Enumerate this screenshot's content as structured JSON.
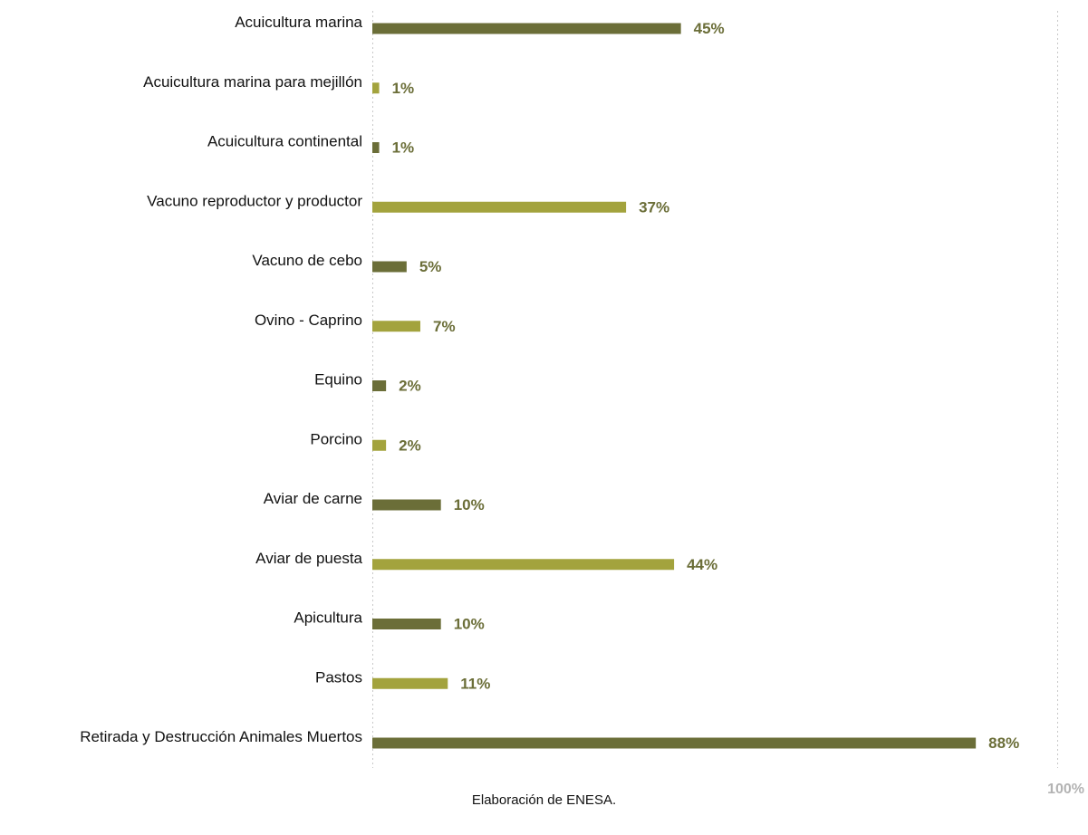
{
  "chart_data": {
    "type": "bar",
    "orientation": "horizontal",
    "categories": [
      "Acuicultura marina",
      "Acuicultura marina para mejillón",
      "Acuicultura continental",
      "Vacuno reproductor y productor",
      "Vacuno de cebo",
      "Ovino - Caprino",
      "Equino",
      "Porcino",
      "Aviar de carne",
      "Aviar de puesta",
      "Apicultura",
      "Pastos",
      "Retirada y Destrucción Animales Muertos"
    ],
    "values": [
      45,
      1,
      1,
      37,
      5,
      7,
      2,
      2,
      10,
      44,
      10,
      11,
      88
    ],
    "value_labels": [
      "45%",
      "1%",
      "1%",
      "37%",
      "5%",
      "7%",
      "2%",
      "2%",
      "10%",
      "44%",
      "10%",
      "11%",
      "88%"
    ],
    "xlim": [
      0,
      100
    ],
    "x_tick_labels": [
      "100%"
    ],
    "grid": "dashed vertical lines at 0 and 100",
    "legend": "none",
    "colors": {
      "bar_dark": "#6b6e38",
      "bar_light": "#a3a33d",
      "value_label": "#6b6e38",
      "tick_label": "#b3b3b3",
      "gridline": "#c8c8c8"
    }
  },
  "source_note": "Elaboración de ENESA."
}
